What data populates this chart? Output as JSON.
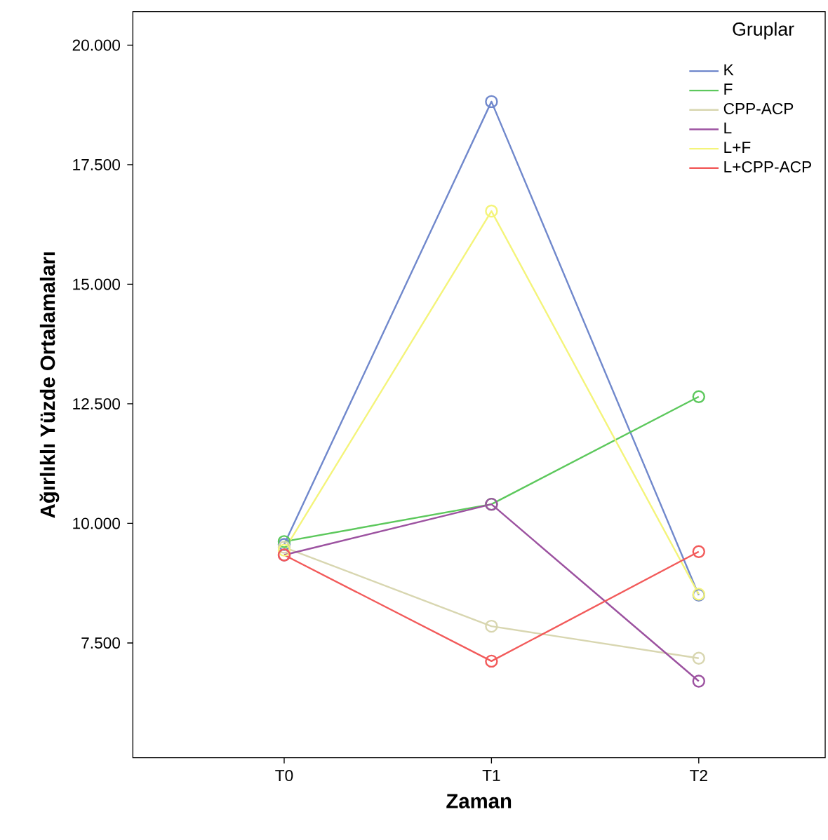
{
  "chart_data": {
    "type": "line",
    "xlabel": "Zaman",
    "ylabel": "Ağırlıklı Yüzde Ortalamaları",
    "legend_title": "Gruplar",
    "categories": [
      "T0",
      "T1",
      "T2"
    ],
    "series": [
      {
        "name": "K",
        "color": "#7088cc",
        "values": [
          9560,
          18820,
          8500
        ]
      },
      {
        "name": "F",
        "color": "#5cc85c",
        "values": [
          9620,
          10400,
          12650
        ]
      },
      {
        "name": "CPP-ACP",
        "color": "#d8d6b0",
        "values": [
          9500,
          7850,
          7180
        ]
      },
      {
        "name": "L",
        "color": "#9c52a0",
        "values": [
          9340,
          10400,
          6700
        ]
      },
      {
        "name": "L+F",
        "color": "#f4f47a",
        "values": [
          9440,
          16530,
          8520
        ]
      },
      {
        "name": "L+CPP-ACP",
        "color": "#f25a5a",
        "values": [
          9340,
          7120,
          9410
        ]
      }
    ],
    "ylim": [
      5100,
      20700
    ],
    "yticks": [
      {
        "value": 7500,
        "label": "7.500"
      },
      {
        "value": 10000,
        "label": "10.000"
      },
      {
        "value": 12500,
        "label": "12.500"
      },
      {
        "value": 15000,
        "label": "15.000"
      },
      {
        "value": 17500,
        "label": "17.500"
      },
      {
        "value": 20000,
        "label": "20.000"
      }
    ],
    "marker": "circle",
    "line_style": "solid",
    "legend": "top right",
    "grid": false
  }
}
